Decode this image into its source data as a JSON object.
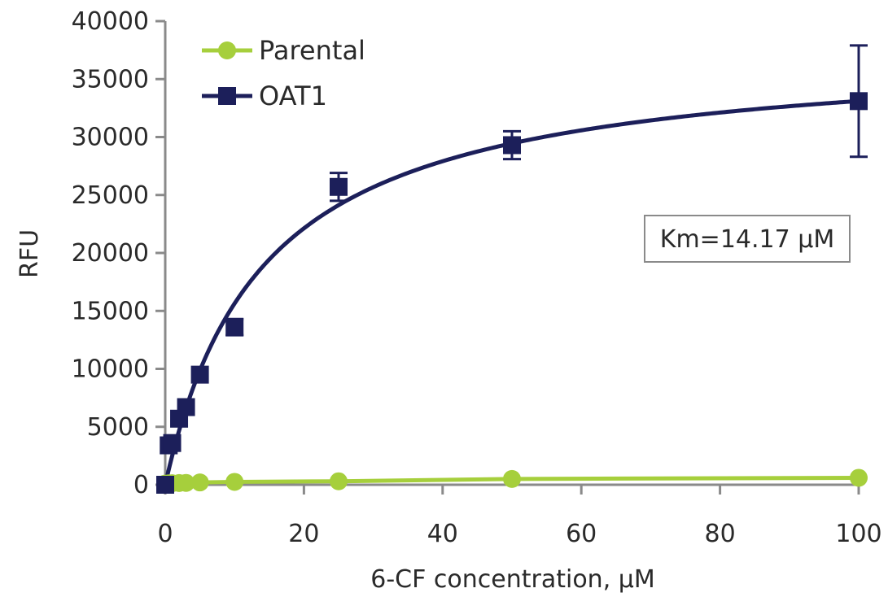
{
  "chart_data": {
    "type": "scatter",
    "title": "",
    "xlabel": "6-CF concentration, μM",
    "ylabel": "RFU",
    "xlim": [
      0,
      100
    ],
    "ylim": [
      0,
      40000
    ],
    "xticks": [
      0,
      20,
      40,
      60,
      80,
      100
    ],
    "yticks": [
      0,
      5000,
      10000,
      15000,
      20000,
      25000,
      30000,
      35000,
      40000
    ],
    "legend_position": "top-left",
    "grid": false,
    "annotation": "Km=14.17 μM",
    "series": [
      {
        "name": "Parental",
        "color": "#a6cf3c",
        "marker": "circle",
        "x": [
          0,
          0.5,
          1,
          2,
          3,
          5,
          10,
          25,
          50,
          100
        ],
        "y": [
          100,
          120,
          130,
          150,
          160,
          200,
          250,
          300,
          500,
          600
        ]
      },
      {
        "name": "OAT1",
        "color": "#1c1f5a",
        "marker": "square",
        "x": [
          0,
          0.5,
          1,
          2,
          3,
          5,
          10,
          25,
          50,
          100
        ],
        "y": [
          0,
          3400,
          3600,
          5700,
          6700,
          9500,
          13600,
          25700,
          29300,
          33100
        ],
        "error": [
          0,
          0,
          0,
          0,
          0,
          0,
          700,
          1200,
          1200,
          4800
        ],
        "fit": {
          "model": "michaelis-menten",
          "vmax": 37800,
          "km": 14.17
        }
      }
    ]
  }
}
